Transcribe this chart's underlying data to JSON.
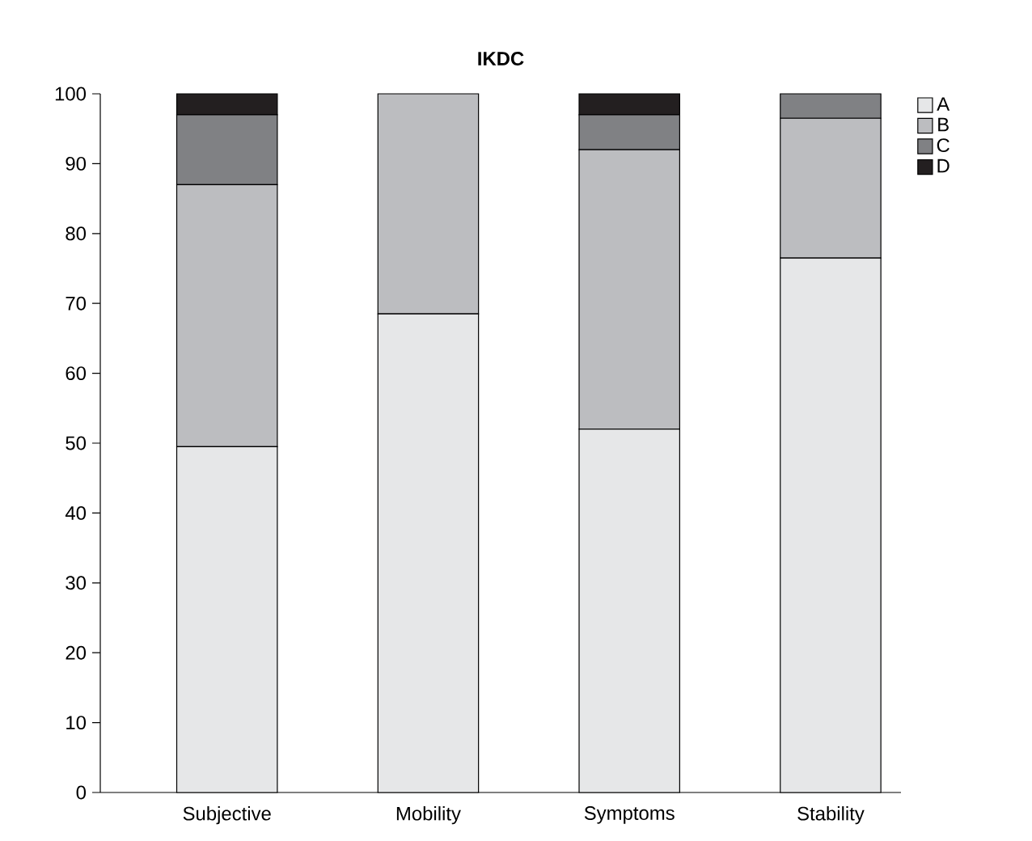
{
  "chart_data": {
    "type": "bar",
    "title": "IKDC",
    "stacked": true,
    "categories": [
      "Subjective",
      "Mobility",
      "Symptoms",
      "Stability"
    ],
    "series": [
      {
        "name": "A",
        "color": "#e6e7e8",
        "values": [
          49.5,
          68.5,
          52,
          76.5
        ]
      },
      {
        "name": "B",
        "color": "#bcbdc0",
        "values": [
          37.5,
          31.5,
          40,
          20
        ]
      },
      {
        "name": "C",
        "color": "#808184",
        "values": [
          10,
          0,
          5,
          3.5
        ]
      },
      {
        "name": "D",
        "color": "#231f20",
        "values": [
          3,
          0,
          3,
          0
        ]
      }
    ],
    "ylim": [
      0,
      100
    ],
    "yticks": [
      0,
      10,
      20,
      30,
      40,
      50,
      60,
      70,
      80,
      90,
      100
    ],
    "grid": false,
    "legend": "top right"
  }
}
